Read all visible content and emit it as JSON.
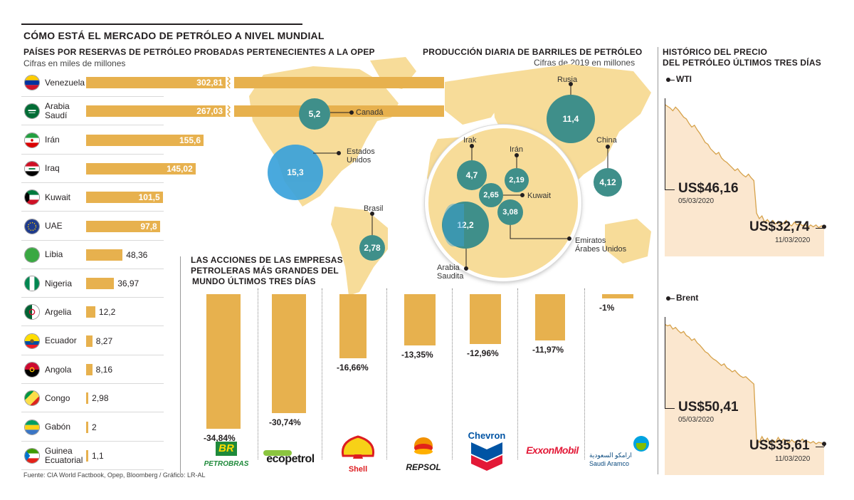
{
  "header": {
    "main_title": "CÓMO ESTÁ EL MERCADO DE PETRÓLEO A NIVEL MUNDIAL",
    "reserves_title": "PAÍSES POR RESERVAS DE PETRÓLEO PROBADAS PERTENECIENTES A LA OPEP",
    "reserves_subtitle": "Cifras en miles de millones",
    "production_title": "PRODUCCIÓN DIARIA DE BARRILES DE PETRÓLEO",
    "production_subtitle": "Cifras de 2019 en millones",
    "history_title_1": "HISTÓRICO DEL PRECIO",
    "history_title_2": "DEL PETRÓLEO ÚLTIMOS TRES DÍAS",
    "stocks_title_1": "LAS ACCIONES DE LAS EMPRESAS",
    "stocks_title_2": "PETROLERAS MÁS GRANDES DEL",
    "stocks_title_3": "MUNDO ÚLTIMOS TRES DÍAS",
    "source": "Fuente: CIA World Factbook, Opep, Bloomberg / Gráfico: LR-AL"
  },
  "colors": {
    "bar": "#e7b14e",
    "map": "#f7dc99",
    "bubble": "#3f8f8a",
    "bubble_us": "#3aa2db",
    "price_fill": "#fbe7cf",
    "price_line": "#d6a24b"
  },
  "chart_data": [
    {
      "type": "bar",
      "title": "PAÍSES POR RESERVAS DE PETRÓLEO PROBADAS PERTENECIENTES A LA OPEP",
      "unit": "Cifras en miles de millones",
      "categories": [
        "Venezuela",
        "Arabia Saudí",
        "Irán",
        "Iraq",
        "Kuwait",
        "UAE",
        "Libia",
        "Nigeria",
        "Argelia",
        "Ecuador",
        "Angola",
        "Congo",
        "Gabón",
        "Guinea Ecuatorial"
      ],
      "category_lines": [
        [
          "Venezuela"
        ],
        [
          "Arabia",
          "Saudí"
        ],
        [
          "Irán"
        ],
        [
          "Iraq"
        ],
        [
          "Kuwait"
        ],
        [
          "UAE"
        ],
        [
          "Libia"
        ],
        [
          "Nigeria"
        ],
        [
          "Argelia"
        ],
        [
          "Ecuador"
        ],
        [
          "Angola"
        ],
        [
          "Congo"
        ],
        [
          "Gabón"
        ],
        [
          "Guinea",
          "Ecuatorial"
        ]
      ],
      "values": [
        302.81,
        267.03,
        155.6,
        145.02,
        101.5,
        97.8,
        48.36,
        36.97,
        12.2,
        8.27,
        8.16,
        2.98,
        2,
        1.1
      ],
      "labels": [
        "302,81",
        "267,03",
        "155,6",
        "145,02",
        "101,5",
        "97,8",
        "48,36",
        "36,97",
        "12,2",
        "8,27",
        "8,16",
        "2,98",
        "2",
        "1,1"
      ],
      "truncated": [
        true,
        true,
        false,
        false,
        false,
        false,
        false,
        false,
        false,
        false,
        false,
        false,
        false,
        false
      ]
    },
    {
      "type": "bubble",
      "title": "PRODUCCIÓN DIARIA DE BARRILES DE PETRÓLEO",
      "unit": "Cifras de 2019 en millones",
      "points": [
        {
          "country": "Canadá",
          "value": 5.2,
          "label": "5,2"
        },
        {
          "country": "Estados Unidos",
          "value": 15.3,
          "label": "15,3"
        },
        {
          "country": "Brasil",
          "value": 2.78,
          "label": "2,78"
        },
        {
          "country": "Rusia",
          "value": 11.4,
          "label": "11,4"
        },
        {
          "country": "China",
          "value": 4.12,
          "label": "4,12"
        },
        {
          "country": "Irak",
          "value": 4.7,
          "label": "4,7"
        },
        {
          "country": "Irán",
          "value": 2.19,
          "label": "2,19"
        },
        {
          "country": "Kuwait",
          "value": 2.65,
          "label": "2,65"
        },
        {
          "country": "Emiratos Árabes Unidos",
          "value": 3.08,
          "label": "3,08"
        },
        {
          "country": "Arabia Saudita",
          "value": 12.2,
          "label": "12,2"
        }
      ],
      "map_labels": {
        "canada": "Canadá",
        "usa_1": "Estados",
        "usa_2": "Unidos",
        "brasil": "Brasil",
        "rusia": "Rusia",
        "china": "China",
        "irak": "Irak",
        "iran": "Irán",
        "kuwait": "Kuwait",
        "emiratos_1": "Emiratos",
        "emiratos_2": "Árabes Unidos",
        "arabia_1": "Arabia",
        "arabia_2": "Saudita"
      }
    },
    {
      "type": "bar",
      "title": "LAS ACCIONES DE LAS EMPRESAS PETROLERAS MÁS GRANDES DEL MUNDO ÚLTIMOS TRES DÍAS",
      "categories": [
        "Petrobras",
        "Ecopetrol",
        "Shell",
        "Repsol",
        "Chevron",
        "ExxonMobil",
        "Saudi Aramco"
      ],
      "values": [
        -34.84,
        -30.74,
        -16.66,
        -13.35,
        -12.96,
        -11.97,
        -1
      ],
      "labels": [
        "-34,84%",
        "-30,74%",
        "-16,66%",
        "-13,35%",
        "-12,96%",
        "-11,97%",
        "-1%"
      ]
    },
    {
      "type": "line",
      "title": "WTI",
      "unit": "US$",
      "x": [
        "05/03/2020",
        "11/03/2020"
      ],
      "start": {
        "value": 46.16,
        "label": "US$46,16",
        "date": "05/03/2020"
      },
      "end": {
        "value": 32.74,
        "label": "US$32,74",
        "date": "11/03/2020"
      },
      "series": [
        46.2,
        46.0,
        45.8,
        45.5,
        45.9,
        45.6,
        45.2,
        44.8,
        44.6,
        44.1,
        43.7,
        43.9,
        43.4,
        43.0,
        42.5,
        42.0,
        41.8,
        41.3,
        41.0,
        40.7,
        40.9,
        40.3,
        40.0,
        39.8,
        39.5,
        39.2,
        38.9,
        39.1,
        38.7,
        38.4,
        38.2,
        38.5,
        38.1,
        37.8,
        34.2,
        33.6,
        33.9,
        33.2,
        33.5,
        33.1,
        33.4,
        33.0,
        33.3,
        32.9,
        33.1,
        33.4,
        33.0,
        32.8,
        33.2,
        32.9,
        33.1,
        32.8,
        33.0,
        32.6,
        32.9,
        32.7,
        32.9,
        32.6,
        32.8,
        32.7
      ],
      "ylim": [
        31,
        47.5
      ]
    },
    {
      "type": "line",
      "title": "Brent",
      "unit": "US$",
      "x": [
        "05/03/2020",
        "11/03/2020"
      ],
      "start": {
        "value": 50.41,
        "label": "US$50,41",
        "date": "05/03/2020"
      },
      "end": {
        "value": 35.61,
        "label": "US$35,61",
        "date": "11/03/2020"
      },
      "series": [
        50.4,
        50.2,
        50.3,
        49.8,
        50.0,
        49.6,
        49.3,
        49.5,
        49.0,
        48.8,
        48.4,
        48.6,
        48.1,
        47.8,
        47.4,
        47.0,
        46.8,
        46.4,
        46.1,
        45.9,
        45.6,
        45.3,
        45.5,
        45.0,
        44.8,
        44.5,
        44.7,
        44.3,
        44.0,
        43.8,
        43.9,
        43.6,
        43.3,
        43.0,
        36.2,
        35.8,
        36.5,
        35.9,
        36.3,
        35.7,
        36.1,
        35.8,
        36.4,
        35.9,
        36.2,
        36.0,
        35.7,
        36.1,
        35.8,
        36.0,
        35.9,
        36.2,
        35.8,
        35.9,
        35.7,
        35.9,
        35.6,
        35.8,
        35.7,
        35.6
      ],
      "ylim": [
        33.5,
        52
      ]
    }
  ],
  "companies": {
    "petrobras": "PETROBRAS",
    "br": "BR",
    "ecopetrol": "ecopetrol",
    "shell": "Shell",
    "repsol": "REPSOL",
    "chevron": "Chevron",
    "exxon": "ExxonMobil",
    "aramco_ar": "ارامكو السعودية",
    "aramco_en": "Saudi Aramco"
  }
}
